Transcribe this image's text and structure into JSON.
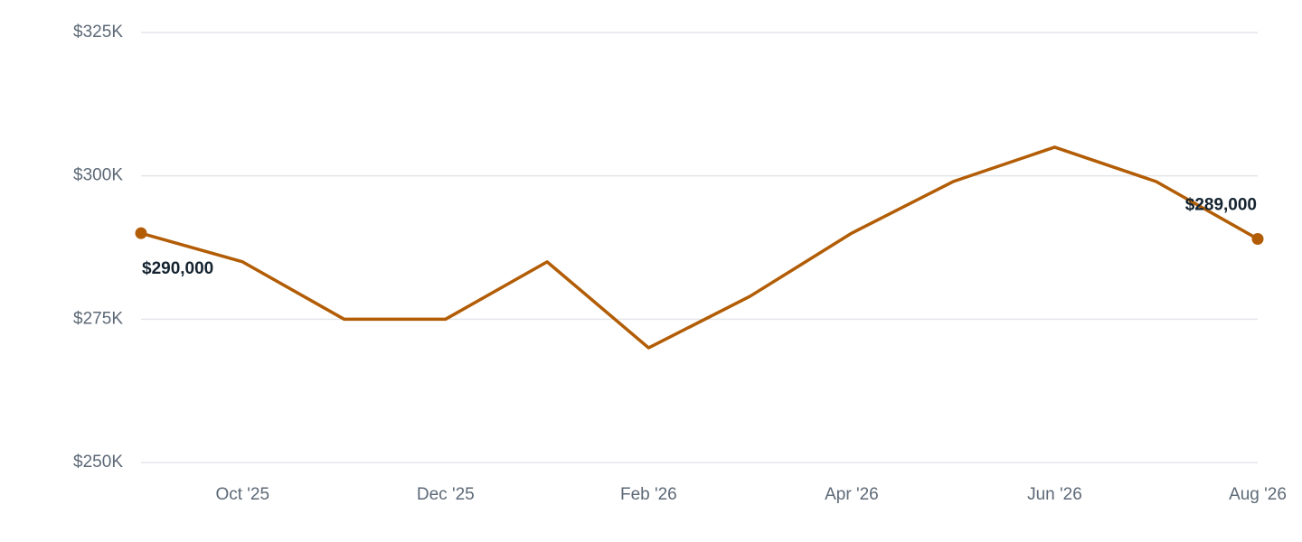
{
  "chart_data": {
    "type": "line",
    "categories": [
      null,
      "Oct '25",
      null,
      "Dec '25",
      null,
      "Feb '26",
      null,
      "Apr '26",
      null,
      "Jun '26",
      null,
      "Aug '26"
    ],
    "values": [
      290000,
      285000,
      275000,
      275000,
      285000,
      270000,
      279000,
      290000,
      299000,
      305000,
      299000,
      289000
    ],
    "value_labels": [
      "$290,000",
      null,
      null,
      null,
      null,
      null,
      null,
      null,
      null,
      null,
      null,
      "$289,000"
    ],
    "color": "#b25d05",
    "ylim": [
      250000,
      325000
    ],
    "yticks": [
      {
        "value": 250000,
        "label": "$250K"
      },
      {
        "value": 275000,
        "label": "$275K"
      },
      {
        "value": 300000,
        "label": "$300K"
      },
      {
        "value": 325000,
        "label": "$325K"
      }
    ],
    "grid": true
  }
}
